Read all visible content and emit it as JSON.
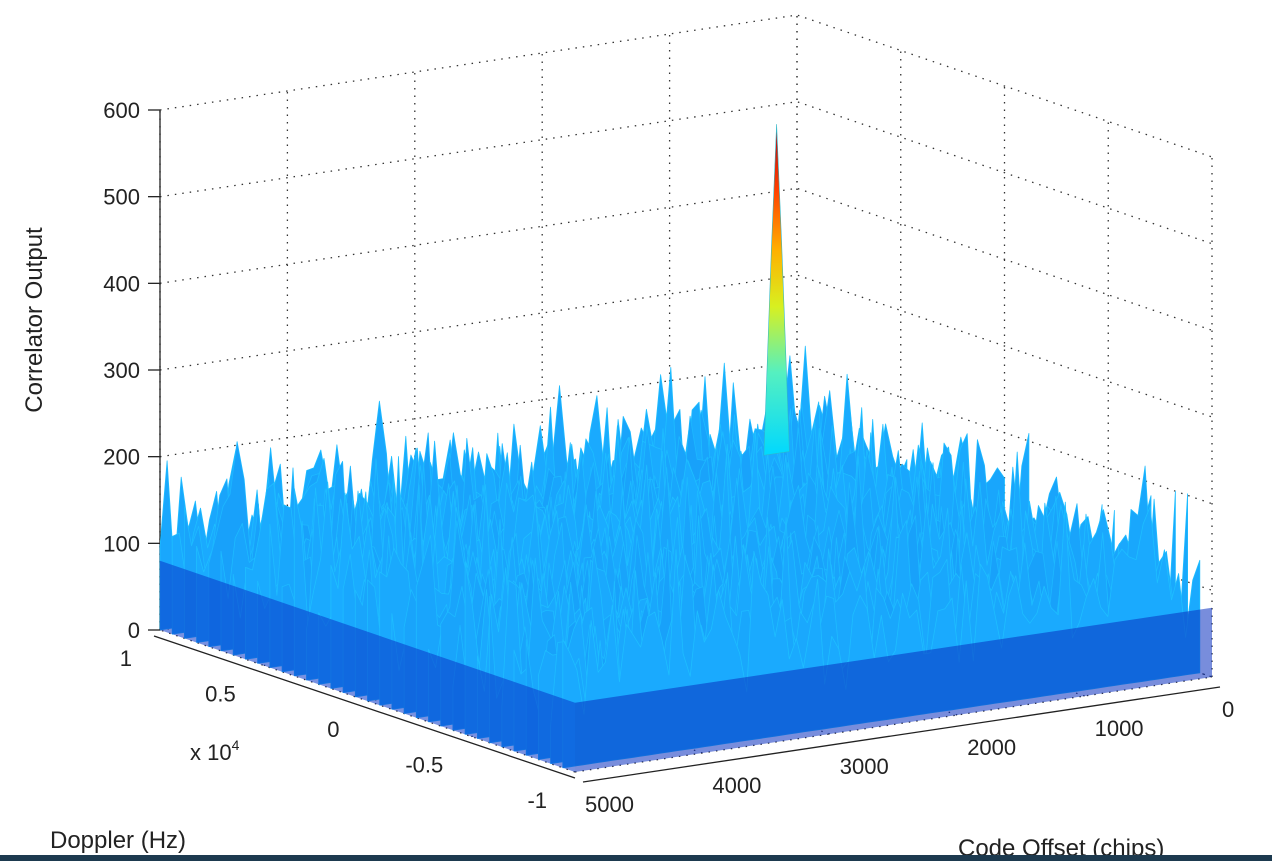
{
  "chart_data": {
    "type": "surface",
    "title": "",
    "xlabel": "Code Offset (chips)",
    "ylabel": "Doppler (Hz)",
    "zlabel": "Correlator Output",
    "y_scale_label": "x 10",
    "y_scale_exponent": "4",
    "x_ticks": [
      "0",
      "1000",
      "2000",
      "3000",
      "4000",
      "5000"
    ],
    "y_ticks": [
      "1",
      "0.5",
      "0",
      "-0.5",
      "-1"
    ],
    "z_ticks": [
      "0",
      "100",
      "200",
      "300",
      "400",
      "500",
      "600"
    ],
    "x_range": [
      0,
      5000
    ],
    "y_range": [
      -10000,
      10000
    ],
    "z_range": [
      0,
      600
    ],
    "grid": true,
    "colormap": "jet",
    "noise_floor_typical": 120,
    "noise_floor_max": 220,
    "peak": {
      "code_offset": 1300,
      "doppler": 3000,
      "value": 560
    }
  }
}
